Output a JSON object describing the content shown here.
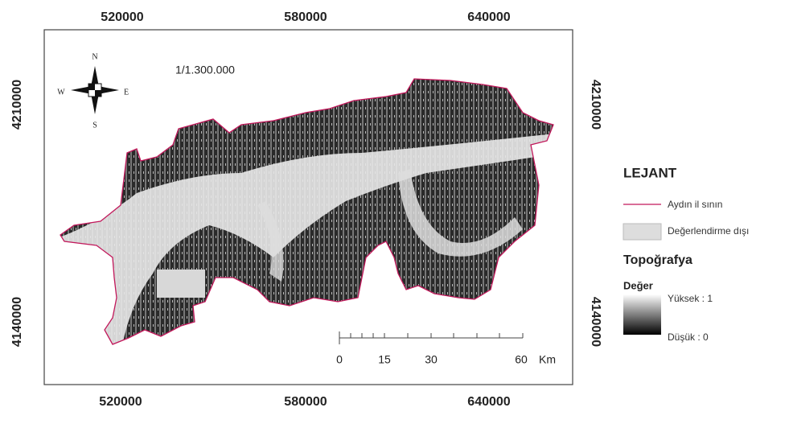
{
  "map": {
    "scale_text": "1/1.300.000",
    "top_labels": [
      "520000",
      "580000",
      "640000"
    ],
    "bottom_labels": [
      "520000",
      "580000",
      "640000"
    ],
    "left_labels": [
      "4210000",
      "4140000"
    ],
    "right_labels": [
      "4210000",
      "4140000"
    ],
    "compass": {
      "n": "N",
      "s": "S",
      "e": "E",
      "w": "W"
    },
    "scale_bar": {
      "labels": [
        "0",
        "15",
        "30",
        "60"
      ],
      "unit": "Km"
    }
  },
  "legend": {
    "title": "LEJANT",
    "boundary": "Aydın il sının",
    "excluded": "Değerlendirme dışı",
    "topo_title": "Topoğrafya",
    "value_title": "Değer",
    "high": "Yüksek : 1",
    "low": "Düşük : 0"
  }
}
